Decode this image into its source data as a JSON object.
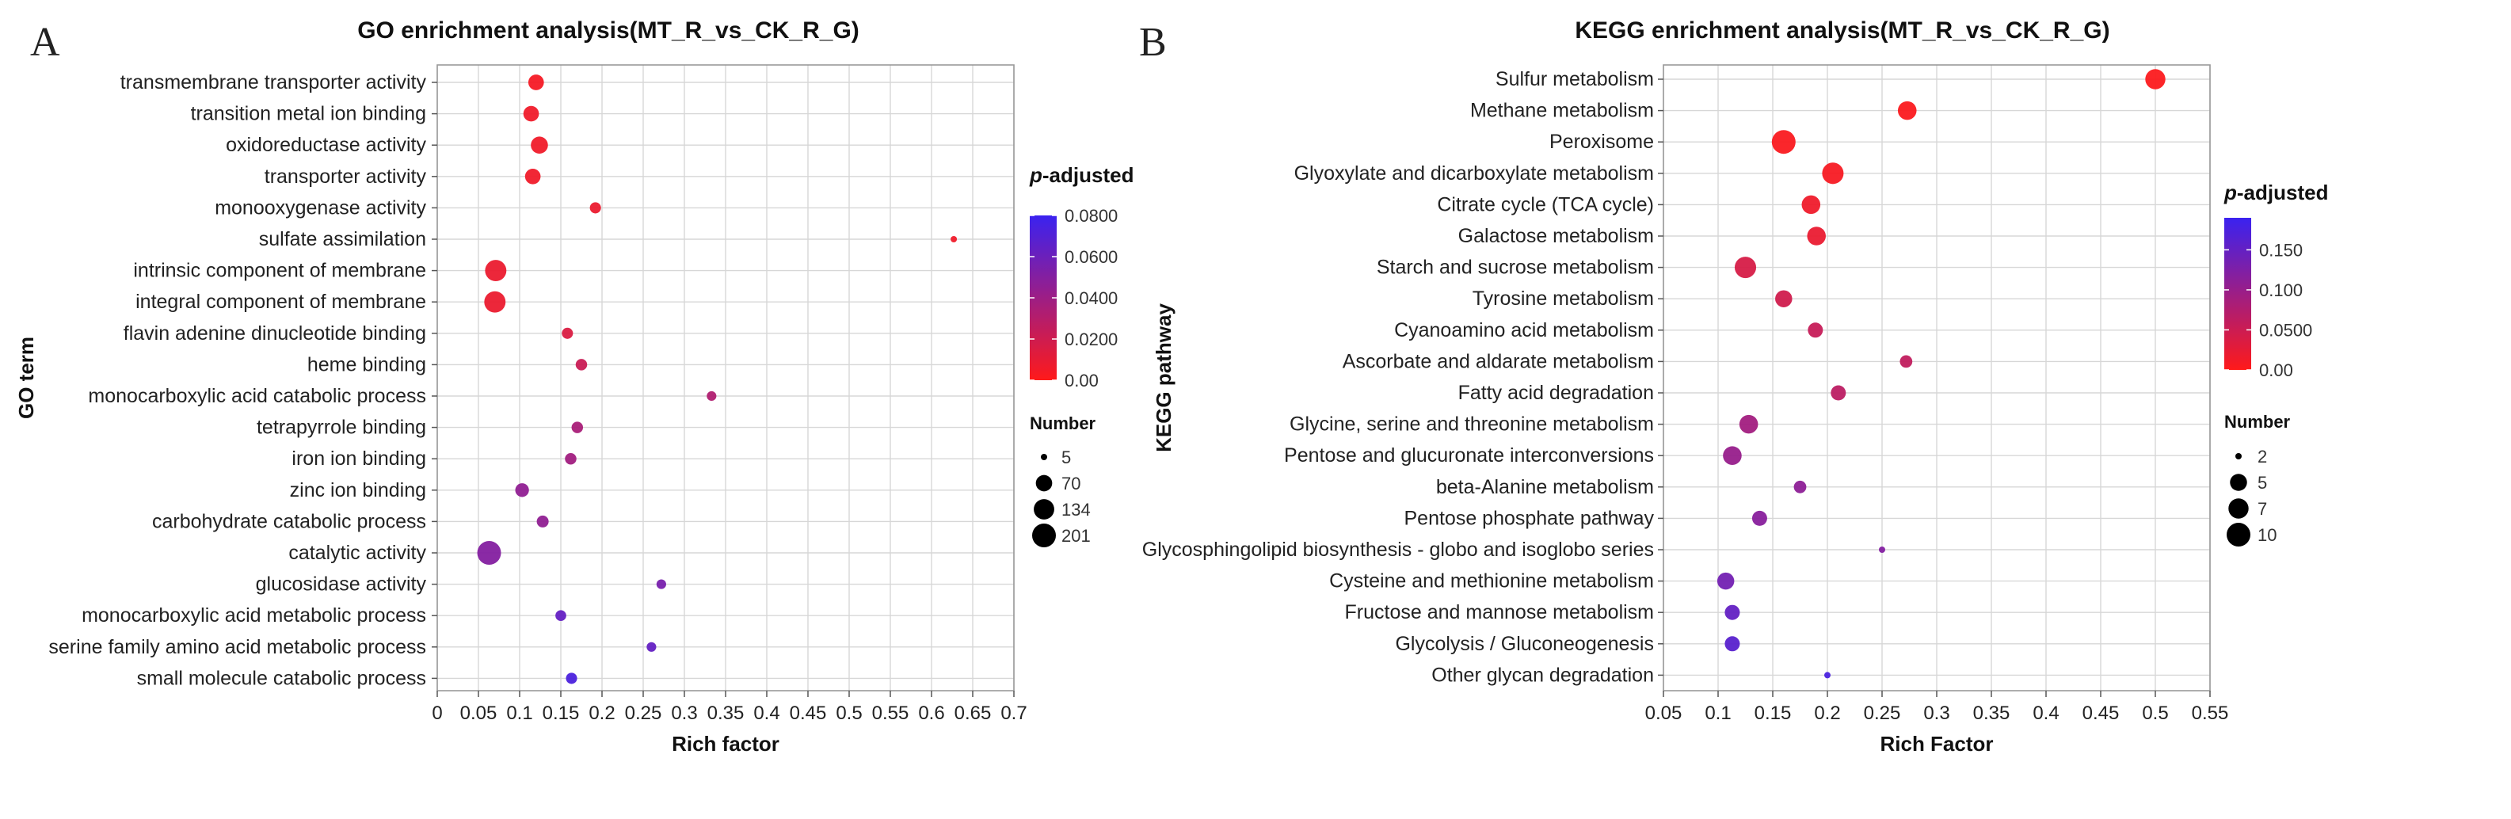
{
  "panels": {
    "a": {
      "letter": "A"
    },
    "b": {
      "letter": "B"
    }
  },
  "chart_data": [
    {
      "type": "scatter",
      "title": "GO enrichment analysis(MT_R_vs_CK_R_G)",
      "xlabel": "Rich factor",
      "ylabel": "GO term",
      "xlim": [
        0,
        0.7
      ],
      "xticks": [
        0,
        0.05,
        0.1,
        0.15,
        0.2,
        0.25,
        0.3,
        0.35,
        0.4,
        0.45,
        0.5,
        0.55,
        0.6,
        0.65,
        0.7
      ],
      "xtick_labels": [
        "0",
        "0.05",
        "0.1",
        "0.15",
        "0.2",
        "0.25",
        "0.3",
        "0.35",
        "0.4",
        "0.45",
        "0.5",
        "0.55",
        "0.6",
        "0.65",
        "0.7"
      ],
      "color_legend": {
        "title": "p-adjusted",
        "min": 0,
        "max": 0.08,
        "ticks": [
          0.08,
          0.06,
          0.04,
          0.02,
          0
        ],
        "tick_labels": [
          "0.0800",
          "0.0600",
          "0.0400",
          "0.0200",
          "0.00"
        ],
        "low_color": "#ff1a1a",
        "high_color": "#3a22f0"
      },
      "size_legend": {
        "title": "Number",
        "values": [
          5,
          70,
          134,
          201
        ],
        "labels": [
          "5",
          "70",
          "134",
          "201"
        ],
        "max": 201
      },
      "terms": [
        {
          "label": "transmembrane transporter activity",
          "rich": 0.12,
          "padj": 0.004,
          "number": 60
        },
        {
          "label": "transition metal ion binding",
          "rich": 0.114,
          "padj": 0.006,
          "number": 60
        },
        {
          "label": "oxidoreductase activity",
          "rich": 0.124,
          "padj": 0.006,
          "number": 80
        },
        {
          "label": "transporter activity",
          "rich": 0.116,
          "padj": 0.006,
          "number": 60
        },
        {
          "label": "monooxygenase activity",
          "rich": 0.192,
          "padj": 0.008,
          "number": 20
        },
        {
          "label": "sulfate assimilation",
          "rich": 0.627,
          "padj": 0.006,
          "number": 5
        },
        {
          "label": "intrinsic component of membrane",
          "rich": 0.071,
          "padj": 0.008,
          "number": 150
        },
        {
          "label": "integral component of membrane",
          "rich": 0.07,
          "padj": 0.008,
          "number": 150
        },
        {
          "label": "flavin adenine dinucleotide binding",
          "rich": 0.158,
          "padj": 0.015,
          "number": 20
        },
        {
          "label": "heme binding",
          "rich": 0.175,
          "padj": 0.022,
          "number": 22
        },
        {
          "label": "monocarboxylic acid catabolic process",
          "rich": 0.333,
          "padj": 0.032,
          "number": 12
        },
        {
          "label": "tetrapyrrole binding",
          "rich": 0.17,
          "padj": 0.035,
          "number": 22
        },
        {
          "label": "iron ion binding",
          "rich": 0.162,
          "padj": 0.038,
          "number": 22
        },
        {
          "label": "zinc ion binding",
          "rich": 0.103,
          "padj": 0.045,
          "number": 40
        },
        {
          "label": "carbohydrate catabolic process",
          "rich": 0.128,
          "padj": 0.045,
          "number": 25
        },
        {
          "label": "catalytic activity",
          "rich": 0.063,
          "padj": 0.05,
          "number": 201
        },
        {
          "label": "glucosidase activity",
          "rich": 0.272,
          "padj": 0.055,
          "number": 12
        },
        {
          "label": "monocarboxylic acid metabolic process",
          "rich": 0.15,
          "padj": 0.063,
          "number": 18
        },
        {
          "label": "serine family amino acid metabolic process",
          "rich": 0.26,
          "padj": 0.063,
          "number": 12
        },
        {
          "label": "small molecule catabolic process",
          "rich": 0.163,
          "padj": 0.073,
          "number": 20
        }
      ]
    },
    {
      "type": "scatter",
      "title": "KEGG enrichment analysis(MT_R_vs_CK_R_G)",
      "xlabel": "Rich Factor",
      "ylabel": "KEGG pathway",
      "xlim": [
        0.05,
        0.55
      ],
      "xticks": [
        0.05,
        0.1,
        0.15,
        0.2,
        0.25,
        0.3,
        0.35,
        0.4,
        0.45,
        0.5,
        0.55
      ],
      "xtick_labels": [
        "0.05",
        "0.1",
        "0.15",
        "0.2",
        "0.25",
        "0.3",
        "0.35",
        "0.4",
        "0.45",
        "0.5",
        "0.55"
      ],
      "color_legend": {
        "title": "p-adjusted",
        "min": 0,
        "max": 0.19,
        "ticks": [
          0.15,
          0.1,
          0.05,
          0
        ],
        "tick_labels": [
          "0.150",
          "0.100",
          "0.0500",
          "0.00"
        ],
        "low_color": "#ff1a1a",
        "high_color": "#3a22f0"
      },
      "size_legend": {
        "title": "Number",
        "values": [
          2,
          5,
          7,
          10
        ],
        "labels": [
          "2",
          "5",
          "7",
          "10"
        ],
        "max": 10
      },
      "terms": [
        {
          "label": "Sulfur metabolism",
          "rich": 0.5,
          "padj": 0.003,
          "number": 7
        },
        {
          "label": "Methane metabolism",
          "rich": 0.273,
          "padj": 0.004,
          "number": 6
        },
        {
          "label": "Peroxisome",
          "rich": 0.16,
          "padj": 0.005,
          "number": 10
        },
        {
          "label": "Glyoxylate and dicarboxylate metabolism",
          "rich": 0.205,
          "padj": 0.008,
          "number": 8
        },
        {
          "label": "Citrate cycle (TCA cycle)",
          "rich": 0.185,
          "padj": 0.015,
          "number": 6
        },
        {
          "label": "Galactose metabolism",
          "rich": 0.19,
          "padj": 0.02,
          "number": 6
        },
        {
          "label": "Starch and sucrose metabolism",
          "rich": 0.125,
          "padj": 0.04,
          "number": 8
        },
        {
          "label": "Tyrosine metabolism",
          "rich": 0.16,
          "padj": 0.045,
          "number": 5
        },
        {
          "label": "Cyanoamino acid metabolism",
          "rich": 0.189,
          "padj": 0.055,
          "number": 4
        },
        {
          "label": "Ascorbate and aldarate metabolism",
          "rich": 0.272,
          "padj": 0.06,
          "number": 3
        },
        {
          "label": "Fatty acid degradation",
          "rich": 0.21,
          "padj": 0.065,
          "number": 4
        },
        {
          "label": "Glycine, serine and threonine metabolism",
          "rich": 0.128,
          "padj": 0.09,
          "number": 6
        },
        {
          "label": "Pentose and glucuronate interconversions",
          "rich": 0.113,
          "padj": 0.1,
          "number": 6
        },
        {
          "label": "beta-Alanine metabolism",
          "rich": 0.175,
          "padj": 0.11,
          "number": 3
        },
        {
          "label": "Pentose phosphate pathway",
          "rich": 0.138,
          "padj": 0.115,
          "number": 4
        },
        {
          "label": "Glycosphingolipid biosynthesis - globo and isoglobo series",
          "rich": 0.25,
          "padj": 0.12,
          "number": 2
        },
        {
          "label": "Cysteine and methionine metabolism",
          "rich": 0.107,
          "padj": 0.135,
          "number": 5
        },
        {
          "label": "Fructose and mannose metabolism",
          "rich": 0.113,
          "padj": 0.15,
          "number": 4
        },
        {
          "label": "Glycolysis / Gluconeogenesis",
          "rich": 0.113,
          "padj": 0.16,
          "number": 4
        },
        {
          "label": "Other glycan degradation",
          "rich": 0.2,
          "padj": 0.175,
          "number": 2
        }
      ]
    }
  ]
}
